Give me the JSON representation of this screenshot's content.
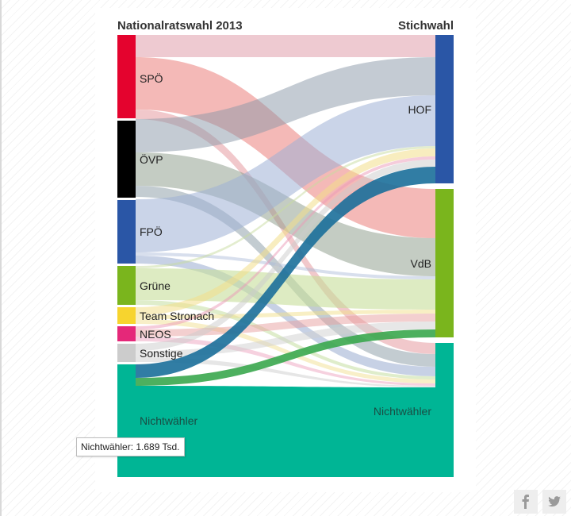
{
  "headers": {
    "left": "Nationalratswahl 2013",
    "right": "Stichwahl"
  },
  "source_nodes": [
    {
      "label": "SPÖ",
      "color": "#e4032e"
    },
    {
      "label": "ÖVP",
      "color": "#000000"
    },
    {
      "label": "FPÖ",
      "color": "#2a56a6"
    },
    {
      "label": "Grüne",
      "color": "#7ab51d"
    },
    {
      "label": "Team Stronach",
      "color": "#f7d42e"
    },
    {
      "label": "NEOS",
      "color": "#e52879"
    },
    {
      "label": "Sonstige",
      "color": "#cccccc"
    },
    {
      "label": "Nichtwähler",
      "color": "#00b595"
    }
  ],
  "target_nodes": [
    {
      "label": "HOF",
      "color": "#2a56a6"
    },
    {
      "label": "VdB",
      "color": "#7ab51d"
    },
    {
      "label": "Nichtwähler",
      "color": "#00b595"
    }
  ],
  "tooltip": {
    "text": "Nichtwähler: 1.689 Tsd."
  },
  "social": {
    "facebook_icon": "facebook-icon",
    "twitter_icon": "twitter-icon"
  }
}
